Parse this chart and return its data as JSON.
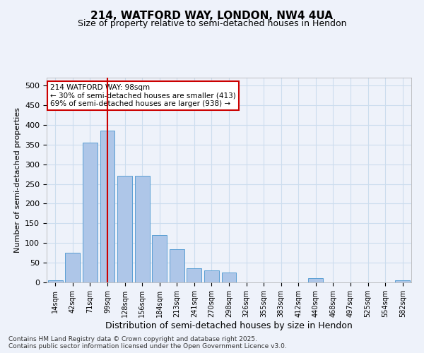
{
  "title_line1": "214, WATFORD WAY, LONDON, NW4 4UA",
  "title_line2": "Size of property relative to semi-detached houses in Hendon",
  "xlabel": "Distribution of semi-detached houses by size in Hendon",
  "ylabel": "Number of semi-detached properties",
  "categories": [
    "14sqm",
    "42sqm",
    "71sqm",
    "99sqm",
    "128sqm",
    "156sqm",
    "184sqm",
    "213sqm",
    "241sqm",
    "270sqm",
    "298sqm",
    "326sqm",
    "355sqm",
    "383sqm",
    "412sqm",
    "440sqm",
    "468sqm",
    "497sqm",
    "525sqm",
    "554sqm",
    "582sqm"
  ],
  "values": [
    5,
    75,
    355,
    385,
    270,
    270,
    120,
    85,
    35,
    30,
    25,
    0,
    0,
    0,
    0,
    10,
    0,
    0,
    0,
    0,
    5
  ],
  "bar_color": "#aec6e8",
  "bar_edge_color": "#5a9fd4",
  "grid_color": "#ccddee",
  "vline_x": 3,
  "vline_color": "#cc0000",
  "annotation_text": "214 WATFORD WAY: 98sqm\n← 30% of semi-detached houses are smaller (413)\n69% of semi-detached houses are larger (938) →",
  "annotation_box_color": "#cc0000",
  "ylim": [
    0,
    520
  ],
  "yticks": [
    0,
    50,
    100,
    150,
    200,
    250,
    300,
    350,
    400,
    450,
    500
  ],
  "footnote": "Contains HM Land Registry data © Crown copyright and database right 2025.\nContains public sector information licensed under the Open Government Licence v3.0.",
  "bg_color": "#eef2fa",
  "plot_bg_color": "#eef2fa"
}
